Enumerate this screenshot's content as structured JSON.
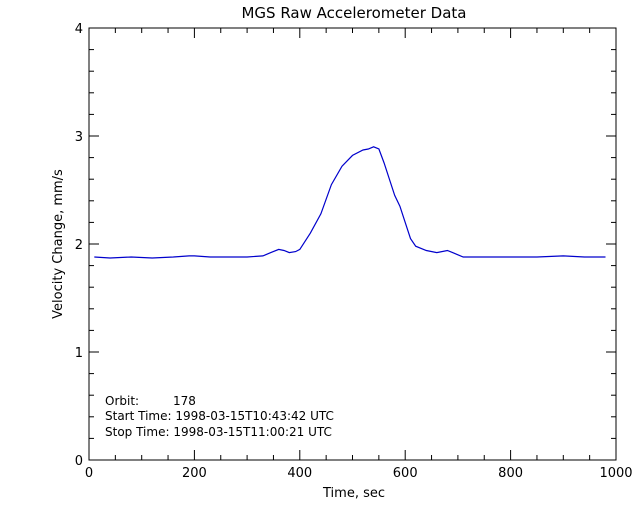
{
  "chart_data": {
    "type": "line",
    "title": "MGS Raw Accelerometer Data",
    "xlabel": "Time, sec",
    "ylabel": "Velocity Change, mm/s",
    "xlim": [
      0,
      1000
    ],
    "ylim": [
      0,
      4
    ],
    "x_ticks": [
      0,
      200,
      400,
      600,
      800,
      1000
    ],
    "y_ticks": [
      0,
      1,
      2,
      3,
      4
    ],
    "grid": false,
    "legend": "none",
    "series_color": "#0000cc",
    "series": [
      {
        "x": [
          10,
          40,
          80,
          120,
          160,
          190,
          200,
          230,
          260,
          300,
          330,
          345,
          360,
          370,
          380,
          392,
          400,
          420,
          440,
          460,
          480,
          500,
          520,
          530,
          540,
          550,
          560,
          570,
          580,
          590,
          600,
          610,
          620,
          640,
          660,
          680,
          690,
          700,
          710,
          720,
          760,
          800,
          850,
          900,
          940,
          980
        ],
        "y": [
          1.88,
          1.87,
          1.88,
          1.87,
          1.88,
          1.89,
          1.89,
          1.88,
          1.88,
          1.88,
          1.89,
          1.92,
          1.95,
          1.94,
          1.92,
          1.93,
          1.95,
          2.1,
          2.28,
          2.55,
          2.72,
          2.82,
          2.87,
          2.88,
          2.9,
          2.88,
          2.75,
          2.6,
          2.45,
          2.35,
          2.2,
          2.05,
          1.98,
          1.94,
          1.92,
          1.94,
          1.92,
          1.9,
          1.88,
          1.88,
          1.88,
          1.88,
          1.88,
          1.89,
          1.88,
          1.88
        ]
      }
    ],
    "annotations": {
      "orbit_label": "Orbit:",
      "orbit_value": "178",
      "start_time": "Start Time: 1998-03-15T10:43:42 UTC",
      "stop_time": "Stop Time: 1998-03-15T11:00:21 UTC"
    }
  }
}
